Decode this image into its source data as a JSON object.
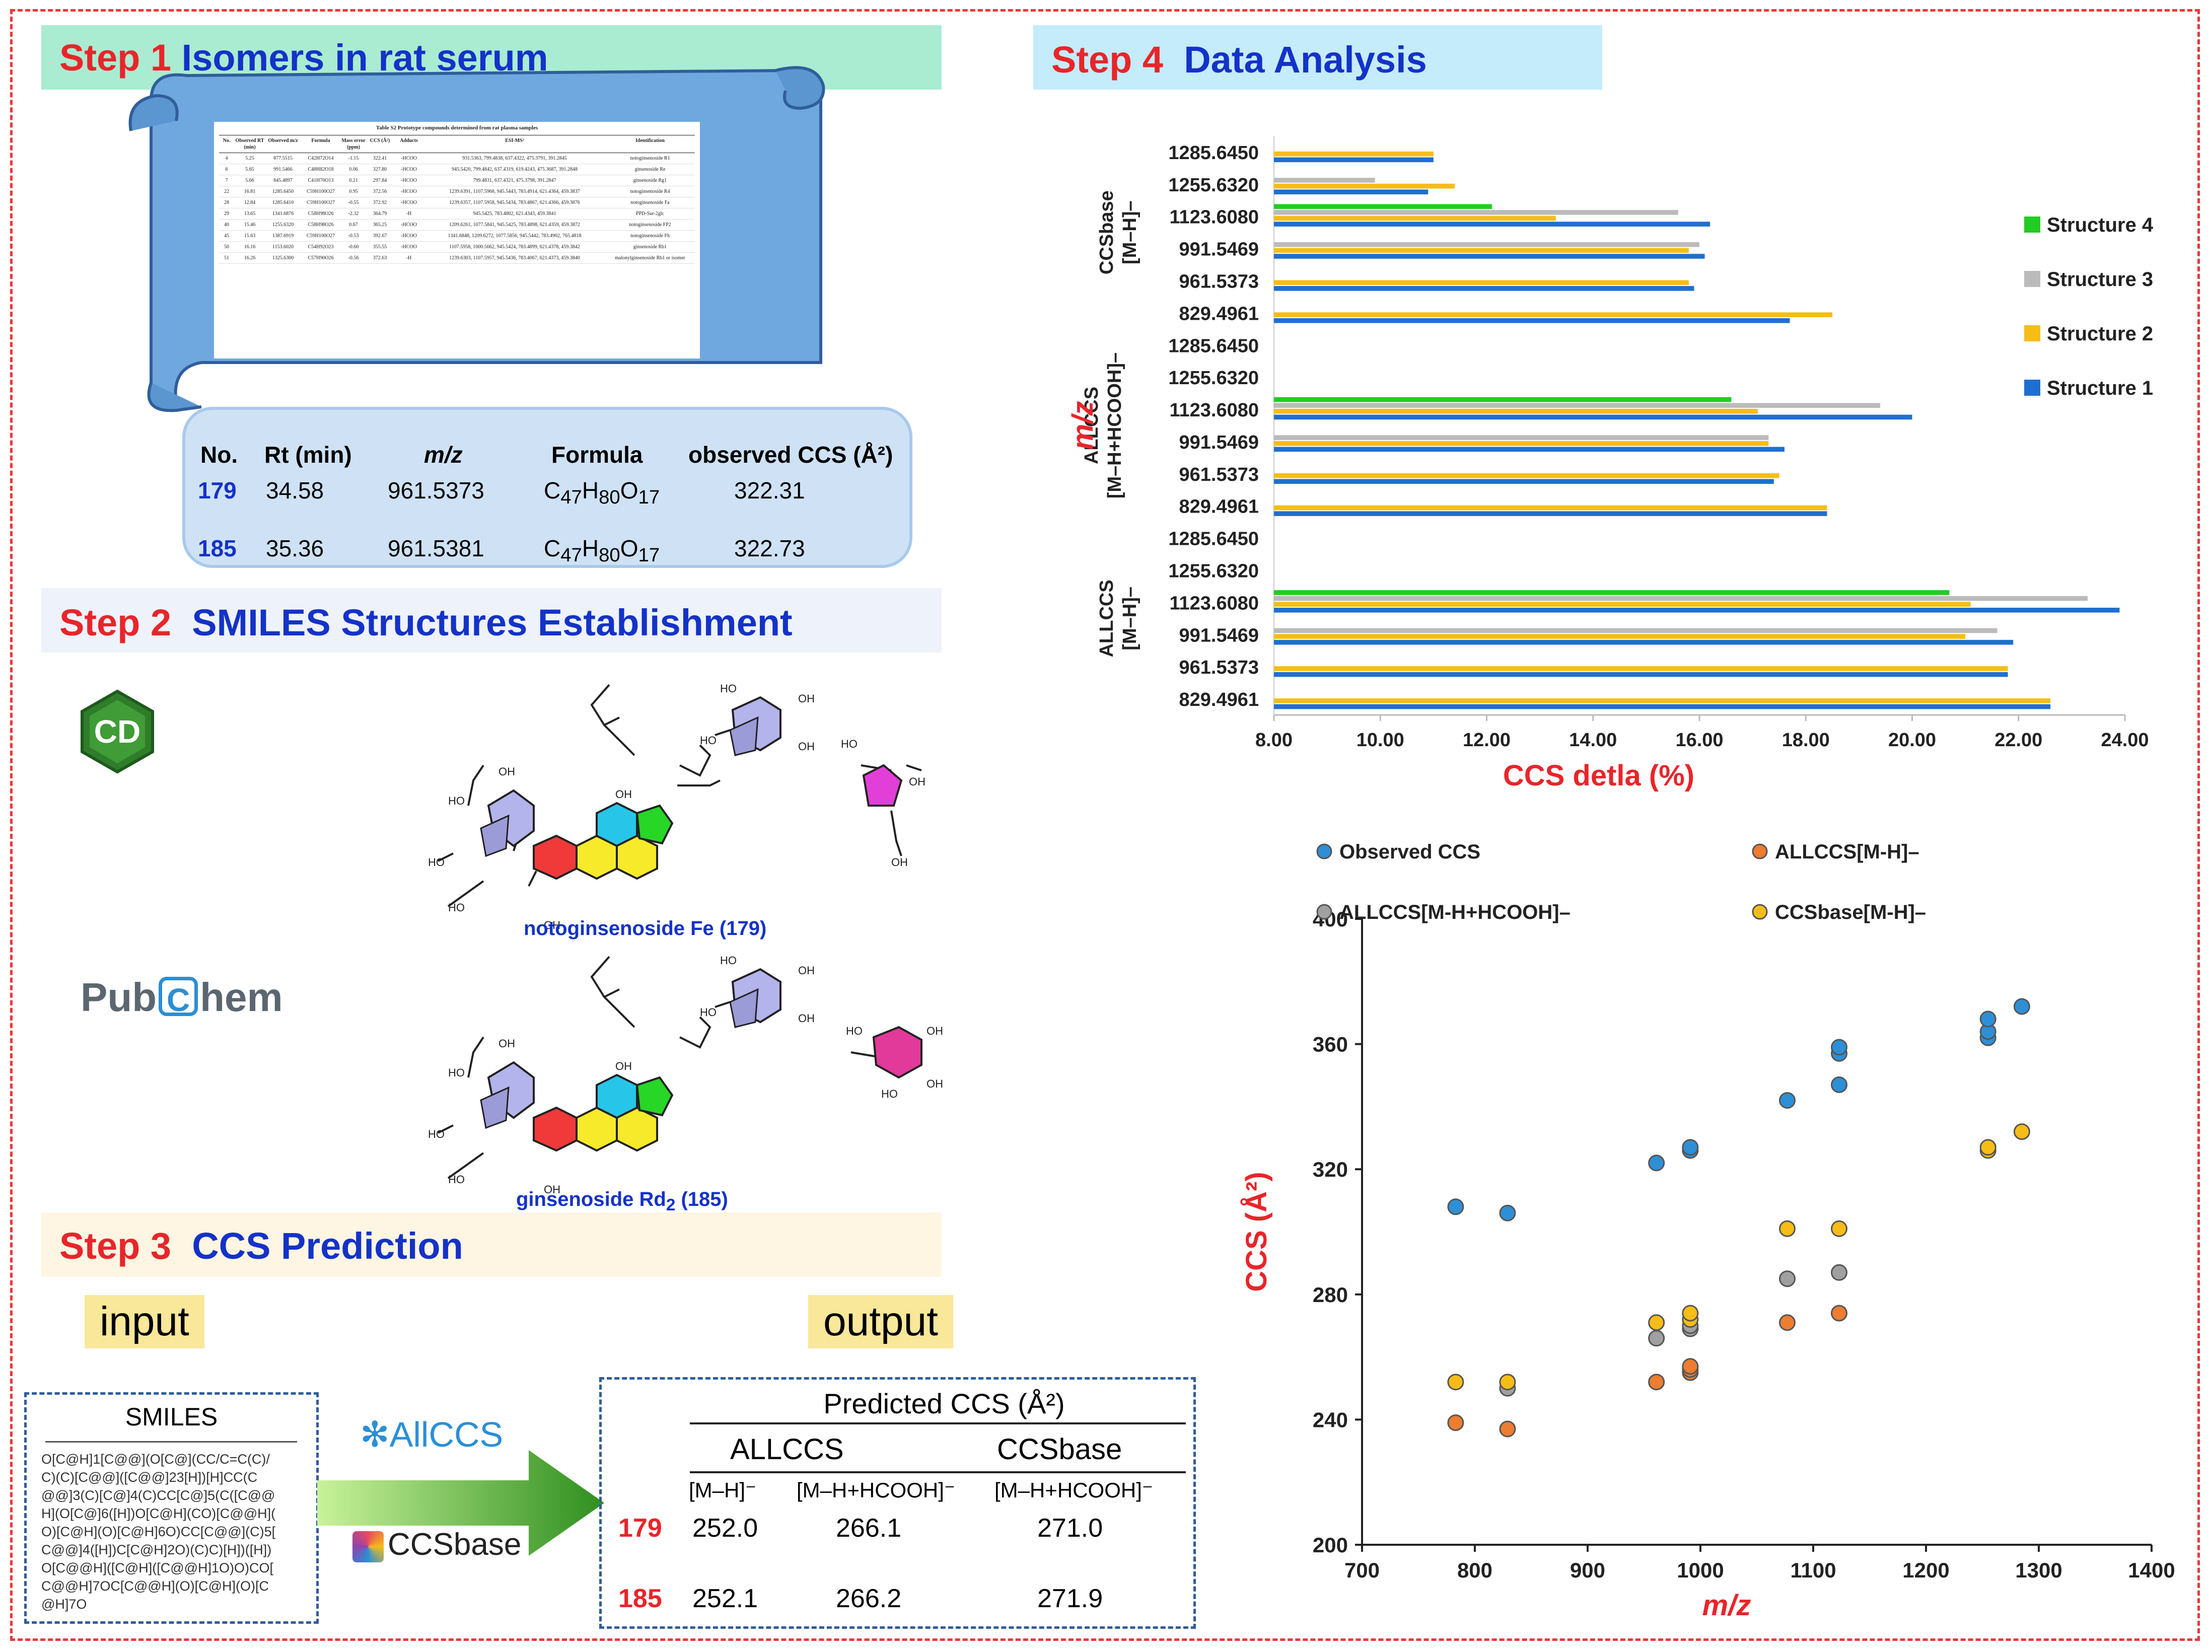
{
  "step1": {
    "num": "Step 1",
    "title": "Isomers in rat serum"
  },
  "step2": {
    "num": "Step 2",
    "title": "SMILES Structures Establishment"
  },
  "step3": {
    "num": "Step 3",
    "title": "CCS Prediction"
  },
  "step4": {
    "num": "Step 4",
    "title": "Data Analysis"
  },
  "scroll_table": {
    "caption": "Table S2 Prototype compounds determined from rat plasma samples",
    "headers": [
      "No.",
      "Observed RT (min)",
      "Observed m/z",
      "Formula",
      "Mass error (ppm)",
      "CCS (Å²)",
      "Adducts",
      "ESI-MS²",
      "Identification"
    ],
    "rows": [
      [
        "4",
        "5.25",
        "877.5515",
        "C42H72O14",
        "-1.15",
        "322.41",
        "-HCOO",
        "931.5363, 799.4838, 637.4322, 475.3791, 391.2845",
        "notoginsenoside R1"
      ],
      [
        "6",
        "5.65",
        "991.5466",
        "C48H82O18",
        "0.06",
        "327.80",
        "-HCOO",
        "945.5420, 799.4842, 637.4319, 619.4243, 475.3687, 391.2848",
        "ginsenoside Re"
      ],
      [
        "7",
        "5.66",
        "845.4897",
        "C41H70O13",
        "0.21",
        "297.84",
        "-HCOO",
        "799.4831, 637.4321, 475.3798, 391.2847",
        "ginsenoside Rg1"
      ],
      [
        "22",
        "16.81",
        "1285.6450",
        "C59H100O27",
        "0.95",
        "372.56",
        "-HCOO",
        "1239.6391, 1107.5968, 945.5443, 783.4914, 621.4364, 459.3837",
        "notoginsenoside R4"
      ],
      [
        "28",
        "12.84",
        "1285.6410",
        "C59H100O27",
        "-0.55",
        "372.92",
        "-HCOO",
        "1239.6357, 1107.5958, 945.5434, 783.4867, 621.4366, 459.3876",
        "notoginsenoside Fa"
      ],
      [
        "29",
        "13.65",
        "1341.6876",
        "C58H98O26",
        "-2.32",
        "364.79",
        "-H",
        "945.5425, 783.4802, 621.4343, 459.3841",
        "PPD-Sur-2glc"
      ],
      [
        "40",
        "15.46",
        "1255.6320",
        "C58H98O26",
        "0.67",
        "365.25",
        "-HCOO",
        "1209.6261, 1077.5841, 945.5425, 783.4898, 621.4359, 459.3872",
        "notoginsenoside FP2"
      ],
      [
        "45",
        "15.63",
        "1387.6919",
        "C59H100O27",
        "-0.53",
        "392.67",
        "-HCOO",
        "1341.6848, 1209.6272, 1077.5856, 945.5442, 783.4902, 765.4818",
        "notoginsenoside Fh"
      ],
      [
        "50",
        "16.16",
        "1153.6020",
        "C54H92O23",
        "-0.60",
        "355.55",
        "-HCOO",
        "1107.5958, 1000.5662, 945.5424, 783.4899, 621.4378, 459.3842",
        "ginsenoside Rb1"
      ],
      [
        "51",
        "16.26",
        "1325.6300",
        "C57H90O26",
        "-0.56",
        "372.63",
        "-H",
        "1239.6303, 1107.5957, 945.5436, 783.4067, 621.4373, 459.3840",
        "malonylginsenoside Rb1 or isomer"
      ]
    ]
  },
  "isomer_table": {
    "headers": [
      "No.",
      "Rt (min)",
      "m/z",
      "Formula",
      "observed CCS (Å²)"
    ],
    "rows": [
      {
        "no": "179",
        "rt": "34.58",
        "mz": "961.5373",
        "formula_base": "C",
        "c": "47",
        "h_label": "H",
        "h": "80",
        "o_label": "O",
        "o": "17",
        "ccs": "322.31"
      },
      {
        "no": "185",
        "rt": "35.36",
        "mz": "961.5381",
        "formula_base": "C",
        "c": "47",
        "h_label": "H",
        "h": "80",
        "o_label": "O",
        "o": "17",
        "ccs": "322.73"
      }
    ]
  },
  "step2_labels": {
    "cd_logo": "CD",
    "pubchem_pub": "Pub",
    "pubchem_c": "C",
    "pubchem_hem": "hem",
    "structure1": "notoginsenoside Fe (179)",
    "structure2_a": "ginsenoside Rd",
    "structure2_sub": "2",
    "structure2_b": " (185)",
    "atom_oh": "OH",
    "atom_ho": "HO",
    "atom_o": "O"
  },
  "step3_labels": {
    "input": "input",
    "output": "output",
    "smiles_title": "SMILES",
    "smiles_lines": [
      "O[C@H]1[C@@](O[C@](CC/C=C(C)/",
      "C)(C)[C@@]([C@@]23[H])[H]CC(C",
      "@@]3(C)[C@]4(C)CC[C@]5(C([C@@",
      "H](O[C@]6([H])O[C@H](CO)[C@@H](",
      "O)[C@H](O)[C@H]6O)CC[C@@](C)5[",
      "C@@]4([H])C[C@H]2O)(C)C)[H])([H])",
      "O[C@@H]([C@H]([C@@H]1O)O)CO[",
      "C@@H]7OC[C@@H](O)[C@H](O)[C",
      "@H]7O"
    ],
    "allccs_logo": "AllCCS",
    "ccsbase_logo": "CCSbase",
    "pred_title": "Predicted CCS (Å²)",
    "pred_col_allccs": "ALLCCS",
    "pred_col_ccsbase": "CCSbase",
    "adduct1": "[M–H]⁻",
    "adduct2": "[M–H+HCOOH]⁻",
    "adduct3": "[M–H+HCOOH]⁻",
    "pred_rows": [
      {
        "no": "179",
        "v1": "252.0",
        "v2": "266.1",
        "v3": "271.0"
      },
      {
        "no": "185",
        "v1": "252.1",
        "v2": "266.2",
        "v3": "271.9"
      }
    ]
  },
  "chart_data": [
    {
      "type": "bar",
      "orientation": "horizontal",
      "xlabel": "CCS detla (%)",
      "ylabel": "m/z",
      "xlim": [
        8.0,
        24.0
      ],
      "xticks": [
        "8.00",
        "10.00",
        "12.00",
        "14.00",
        "16.00",
        "18.00",
        "20.00",
        "22.00",
        "24.00"
      ],
      "groups": [
        {
          "name_l1": "CCSbase",
          "name_l2": "[M–H]–",
          "categories": [
            "1285.6450",
            "1255.6320",
            "1123.6080",
            "991.5469",
            "961.5373",
            "829.4961"
          ]
        },
        {
          "name_l1": "ALLCCS",
          "name_l2": "[M–H+HCOOH]–",
          "categories": [
            "1285.6450",
            "1255.6320",
            "1123.6080",
            "991.5469",
            "961.5373",
            "829.4961"
          ]
        },
        {
          "name_l1": "ALLCCS",
          "name_l2": "[M–H]–",
          "categories": [
            "1285.6450",
            "1255.6320",
            "1123.6080",
            "991.5469",
            "961.5373",
            "829.4961"
          ]
        }
      ],
      "series": [
        {
          "name": "Structure 4",
          "color": "#22cc22",
          "values": [
            [
              null,
              null,
              12.1,
              null,
              null,
              null
            ],
            [
              null,
              null,
              16.6,
              null,
              null,
              null
            ],
            [
              null,
              null,
              20.7,
              null,
              null,
              null
            ]
          ]
        },
        {
          "name": "Structure 3",
          "color": "#bbbbbb",
          "values": [
            [
              null,
              9.9,
              15.6,
              16.0,
              null,
              null
            ],
            [
              null,
              null,
              19.4,
              17.3,
              null,
              null
            ],
            [
              null,
              null,
              23.3,
              21.6,
              null,
              null
            ]
          ]
        },
        {
          "name": "Structure 2",
          "color": "#f6bd16",
          "values": [
            [
              11.0,
              11.4,
              13.3,
              15.8,
              15.8,
              18.5
            ],
            [
              null,
              null,
              17.1,
              17.3,
              17.5,
              18.4
            ],
            [
              null,
              null,
              21.1,
              21.0,
              21.8,
              22.6
            ]
          ]
        },
        {
          "name": "Structure 1",
          "color": "#1f6fd0",
          "values": [
            [
              11.0,
              10.9,
              16.2,
              16.1,
              15.9,
              17.7
            ],
            [
              null,
              null,
              20.0,
              17.6,
              17.4,
              18.4
            ],
            [
              null,
              null,
              23.9,
              21.9,
              21.8,
              22.6
            ]
          ]
        }
      ]
    },
    {
      "type": "scatter",
      "xlabel": "m/z",
      "ylabel": "CCS (Å²)",
      "xlim": [
        700,
        1400
      ],
      "ylim": [
        200,
        400
      ],
      "xticks": [
        "700",
        "800",
        "900",
        "1000",
        "1100",
        "1200",
        "1300",
        "1400"
      ],
      "yticks": [
        "200",
        "240",
        "280",
        "320",
        "360",
        "400"
      ],
      "series": [
        {
          "name": "Observed CCS",
          "color": "#2e8fd6",
          "points": [
            [
              783,
              308
            ],
            [
              829,
              306
            ],
            [
              961,
              322
            ],
            [
              991,
              326
            ],
            [
              991,
              327
            ],
            [
              1077,
              342
            ],
            [
              1123,
              347
            ],
            [
              1123,
              357
            ],
            [
              1123,
              359
            ],
            [
              1255,
              362
            ],
            [
              1255,
              364
            ],
            [
              1255,
              368
            ],
            [
              1285,
              372
            ]
          ]
        },
        {
          "name": "ALLCCS[M-H]–",
          "color": "#ec7d31",
          "points": [
            [
              783,
              239
            ],
            [
              829,
              237
            ],
            [
              961,
              252
            ],
            [
              991,
              255
            ],
            [
              991,
              256
            ],
            [
              991,
              257
            ],
            [
              1077,
              271
            ],
            [
              1123,
              274
            ]
          ]
        },
        {
          "name": "ALLCCS[M-H+HCOOH]–",
          "color": "#a0a0a0",
          "points": [
            [
              829,
              250
            ],
            [
              961,
              266
            ],
            [
              991,
              269
            ],
            [
              991,
              270
            ],
            [
              1077,
              285
            ],
            [
              1123,
              287
            ]
          ]
        },
        {
          "name": "CCSbase[M-H]–",
          "color": "#f6bd16",
          "points": [
            [
              783,
              252
            ],
            [
              829,
              252
            ],
            [
              961,
              271
            ],
            [
              991,
              272
            ],
            [
              991,
              274
            ],
            [
              1077,
              301
            ],
            [
              1123,
              301
            ],
            [
              1255,
              326
            ],
            [
              1255,
              327
            ],
            [
              1285,
              332
            ]
          ]
        }
      ]
    }
  ]
}
